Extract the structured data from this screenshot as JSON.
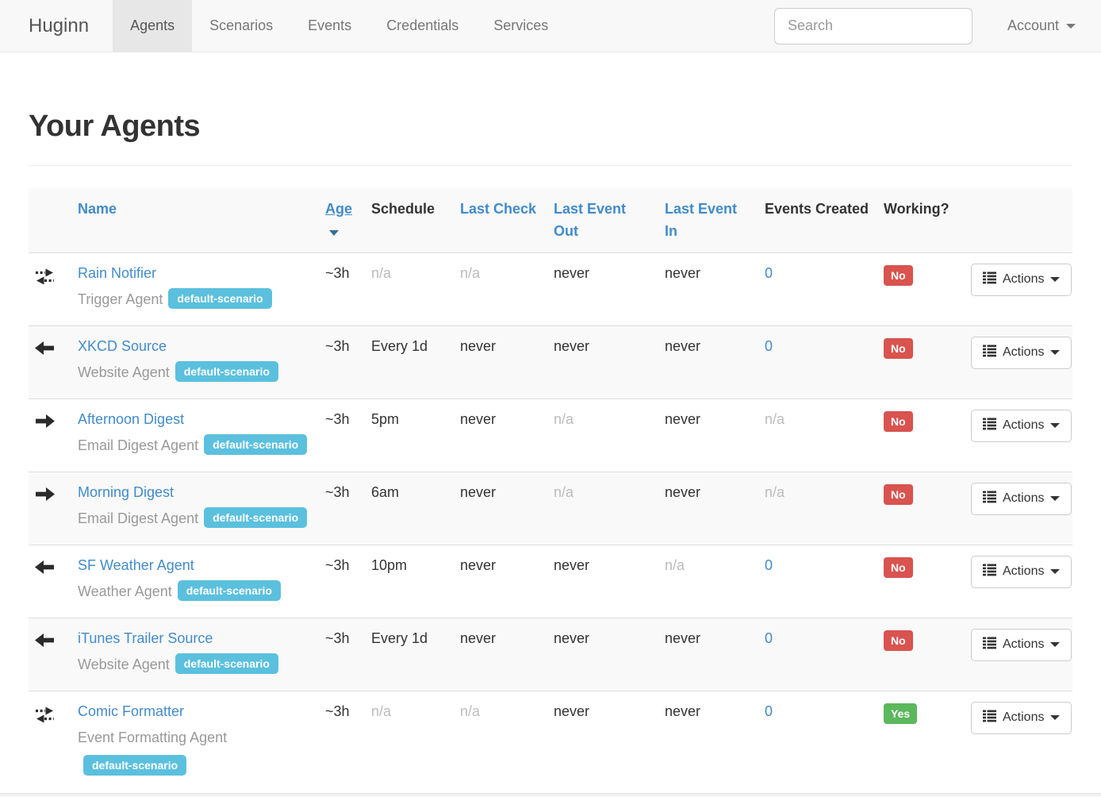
{
  "navbar": {
    "brand": "Huginn",
    "items": [
      {
        "label": "Agents",
        "active": true
      },
      {
        "label": "Scenarios",
        "active": false
      },
      {
        "label": "Events",
        "active": false
      },
      {
        "label": "Credentials",
        "active": false
      },
      {
        "label": "Services",
        "active": false
      }
    ],
    "search_placeholder": "Search",
    "account_label": "Account"
  },
  "page": {
    "title": "Your Agents"
  },
  "table": {
    "headers": [
      {
        "label": "",
        "link": false,
        "sorted": false
      },
      {
        "label": "Name",
        "link": true,
        "sorted": false
      },
      {
        "label": "Age",
        "link": true,
        "sorted": true
      },
      {
        "label": "Schedule",
        "link": false,
        "sorted": false
      },
      {
        "label": "Last Check",
        "link": true,
        "sorted": false
      },
      {
        "label": "Last Event Out",
        "link": true,
        "sorted": false
      },
      {
        "label": "Last Event In",
        "link": true,
        "sorted": false
      },
      {
        "label": "Events Created",
        "link": false,
        "sorted": false
      },
      {
        "label": "Working?",
        "link": false,
        "sorted": false
      },
      {
        "label": "",
        "link": false,
        "sorted": false
      }
    ],
    "actions_label": "Actions",
    "rows": [
      {
        "icon": "transfer-icon",
        "name": "Rain Notifier",
        "type": "Trigger Agent",
        "badge": "default-scenario",
        "age": {
          "text": "~3h",
          "muted": false,
          "link": false
        },
        "schedule": {
          "text": "n/a",
          "muted": true,
          "link": false
        },
        "last_check": {
          "text": "n/a",
          "muted": true,
          "link": false
        },
        "last_event_out": {
          "text": "never",
          "muted": false,
          "link": false
        },
        "last_event_in": {
          "text": "never",
          "muted": false,
          "link": false
        },
        "events_created": {
          "text": "0",
          "muted": false,
          "link": true
        },
        "working": "No"
      },
      {
        "icon": "arrow-left-icon",
        "name": "XKCD Source",
        "type": "Website Agent",
        "badge": "default-scenario",
        "age": {
          "text": "~3h",
          "muted": false,
          "link": false
        },
        "schedule": {
          "text": "Every 1d",
          "muted": false,
          "link": false
        },
        "last_check": {
          "text": "never",
          "muted": false,
          "link": false
        },
        "last_event_out": {
          "text": "never",
          "muted": false,
          "link": false
        },
        "last_event_in": {
          "text": "never",
          "muted": false,
          "link": false
        },
        "events_created": {
          "text": "0",
          "muted": false,
          "link": true
        },
        "working": "No"
      },
      {
        "icon": "arrow-right-icon",
        "name": "Afternoon Digest",
        "type": "Email Digest Agent",
        "badge": "default-scenario",
        "age": {
          "text": "~3h",
          "muted": false,
          "link": false
        },
        "schedule": {
          "text": "5pm",
          "muted": false,
          "link": false
        },
        "last_check": {
          "text": "never",
          "muted": false,
          "link": false
        },
        "last_event_out": {
          "text": "n/a",
          "muted": true,
          "link": false
        },
        "last_event_in": {
          "text": "never",
          "muted": false,
          "link": false
        },
        "events_created": {
          "text": "n/a",
          "muted": true,
          "link": false
        },
        "working": "No"
      },
      {
        "icon": "arrow-right-icon",
        "name": "Morning Digest",
        "type": "Email Digest Agent",
        "badge": "default-scenario",
        "age": {
          "text": "~3h",
          "muted": false,
          "link": false
        },
        "schedule": {
          "text": "6am",
          "muted": false,
          "link": false
        },
        "last_check": {
          "text": "never",
          "muted": false,
          "link": false
        },
        "last_event_out": {
          "text": "n/a",
          "muted": true,
          "link": false
        },
        "last_event_in": {
          "text": "never",
          "muted": false,
          "link": false
        },
        "events_created": {
          "text": "n/a",
          "muted": true,
          "link": false
        },
        "working": "No"
      },
      {
        "icon": "arrow-left-icon",
        "name": "SF Weather Agent",
        "type": "Weather Agent",
        "badge": "default-scenario",
        "age": {
          "text": "~3h",
          "muted": false,
          "link": false
        },
        "schedule": {
          "text": "10pm",
          "muted": false,
          "link": false
        },
        "last_check": {
          "text": "never",
          "muted": false,
          "link": false
        },
        "last_event_out": {
          "text": "never",
          "muted": false,
          "link": false
        },
        "last_event_in": {
          "text": "n/a",
          "muted": true,
          "link": false
        },
        "events_created": {
          "text": "0",
          "muted": false,
          "link": true
        },
        "working": "No"
      },
      {
        "icon": "arrow-left-icon",
        "name": "iTunes Trailer Source",
        "type": "Website Agent",
        "badge": "default-scenario",
        "age": {
          "text": "~3h",
          "muted": false,
          "link": false
        },
        "schedule": {
          "text": "Every 1d",
          "muted": false,
          "link": false
        },
        "last_check": {
          "text": "never",
          "muted": false,
          "link": false
        },
        "last_event_out": {
          "text": "never",
          "muted": false,
          "link": false
        },
        "last_event_in": {
          "text": "never",
          "muted": false,
          "link": false
        },
        "events_created": {
          "text": "0",
          "muted": false,
          "link": true
        },
        "working": "No"
      },
      {
        "icon": "transfer-icon",
        "name": "Comic Formatter",
        "type": "Event Formatting Agent",
        "badge": "default-scenario",
        "age": {
          "text": "~3h",
          "muted": false,
          "link": false
        },
        "schedule": {
          "text": "n/a",
          "muted": true,
          "link": false
        },
        "last_check": {
          "text": "n/a",
          "muted": true,
          "link": false
        },
        "last_event_out": {
          "text": "never",
          "muted": false,
          "link": false
        },
        "last_event_in": {
          "text": "never",
          "muted": false,
          "link": false
        },
        "events_created": {
          "text": "0",
          "muted": false,
          "link": true
        },
        "working": "Yes"
      }
    ]
  },
  "colors": {
    "link": "#428bca",
    "badge_scenario": "#5bc0de",
    "badge_no": "#d9534f",
    "badge_yes": "#5cb85c",
    "navbar_bg": "#f8f8f8",
    "stripe_bg": "#f9f9f9"
  }
}
